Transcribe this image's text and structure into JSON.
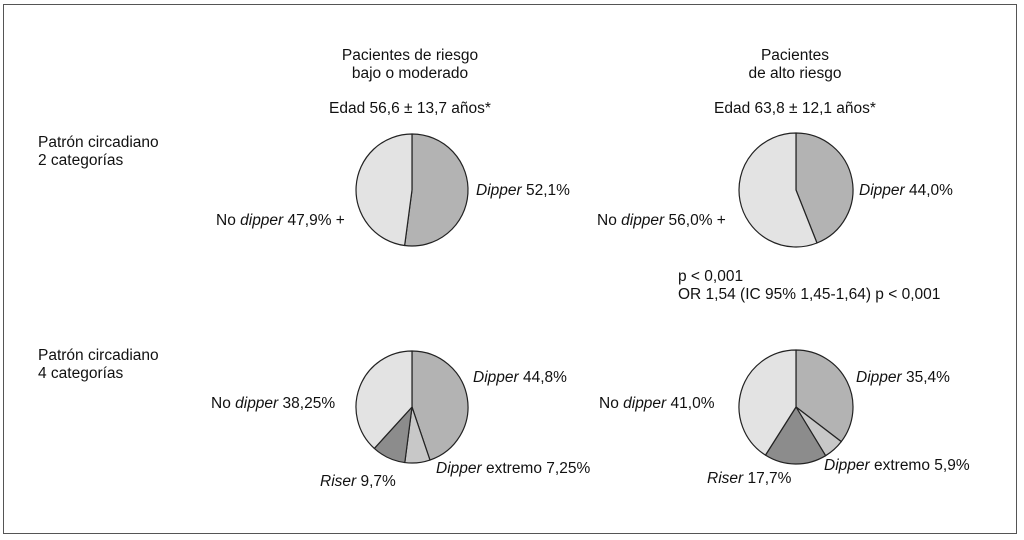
{
  "colors": {
    "dipper": "#b3b3b3",
    "no_dipper": "#e3e3e3",
    "riser": "#8c8c8c",
    "dipper_extremo": "#c8c8c8",
    "stroke": "#222222"
  },
  "columns": {
    "low": {
      "title1": "Pacientes de riesgo",
      "title2": "bajo o moderado",
      "age": "Edad 56,6 ± 13,7 años*"
    },
    "high": {
      "title1": "Pacientes",
      "title2": "de alto riesgo",
      "age": "Edad 63,8 ± 12,1 años*"
    }
  },
  "rows": {
    "two": {
      "line1": "Patrón circadiano",
      "line2": "2 categorías"
    },
    "four": {
      "line1": "Patrón circadiano",
      "line2": "4 categorías"
    }
  },
  "stats": {
    "line1": "p < 0,001",
    "line2": "OR 1,54 (IC 95% 1,45-1,64) p < 0,001"
  },
  "labels": {
    "low2_dipper": {
      "name": "Dipper",
      "value": " 52,1%"
    },
    "low2_nodipper": {
      "pre": "No ",
      "name": "dipper",
      "value": " 47,9% +"
    },
    "high2_dipper": {
      "name": "Dipper",
      "value": " 44,0%"
    },
    "high2_nodipper": {
      "pre": "No ",
      "name": "dipper",
      "value": " 56,0% +"
    },
    "low4_dipper": {
      "name": "Dipper",
      "value": " 44,8%"
    },
    "low4_nodipper": {
      "pre": "No ",
      "name": "dipper",
      "value": " 38,25%"
    },
    "low4_riser": {
      "name": "Riser",
      "value": " 9,7%"
    },
    "low4_extremo": {
      "name": "Dipper",
      "value": " extremo 7,25%"
    },
    "high4_dipper": {
      "name": "Dipper",
      "value": " 35,4%"
    },
    "high4_nodipper": {
      "pre": "No ",
      "name": "dipper",
      "value": " 41,0%"
    },
    "high4_riser": {
      "name": "Riser",
      "value": " 17,7%"
    },
    "high4_extremo": {
      "name": "Dipper",
      "value": " extremo 5,9%"
    }
  },
  "chart_data": [
    {
      "type": "pie",
      "id": "low2",
      "categories": [
        "Dipper",
        "No dipper"
      ],
      "values": [
        52.1,
        47.9
      ],
      "colors": [
        "#b3b3b3",
        "#e3e3e3"
      ]
    },
    {
      "type": "pie",
      "id": "high2",
      "categories": [
        "Dipper",
        "No dipper"
      ],
      "values": [
        44.0,
        56.0
      ],
      "colors": [
        "#b3b3b3",
        "#e3e3e3"
      ]
    },
    {
      "type": "pie",
      "id": "low4",
      "categories": [
        "Dipper",
        "Dipper extremo",
        "Riser",
        "No dipper"
      ],
      "values": [
        44.8,
        7.25,
        9.7,
        38.25
      ],
      "colors": [
        "#b3b3b3",
        "#c8c8c8",
        "#8c8c8c",
        "#e3e3e3"
      ]
    },
    {
      "type": "pie",
      "id": "high4",
      "categories": [
        "Dipper",
        "Dipper extremo",
        "Riser",
        "No dipper"
      ],
      "values": [
        35.4,
        5.9,
        17.7,
        41.0
      ],
      "colors": [
        "#b3b3b3",
        "#c8c8c8",
        "#8c8c8c",
        "#e3e3e3"
      ]
    }
  ]
}
